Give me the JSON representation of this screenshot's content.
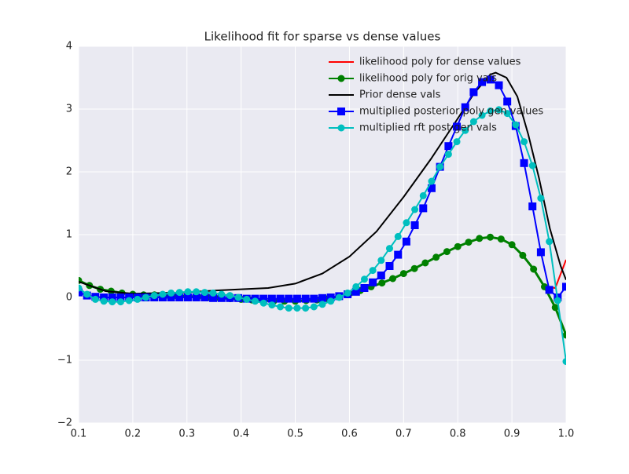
{
  "chart_data": {
    "type": "line",
    "title": "Likelihood fit for sparse vs dense values",
    "xlim": [
      0.1,
      1.0
    ],
    "ylim": [
      -2,
      4
    ],
    "xticks": [
      0.1,
      0.2,
      0.3,
      0.4,
      0.5,
      0.6,
      0.7,
      0.8,
      0.9,
      {
        "value": 1.0,
        "label": "1.0"
      }
    ],
    "yticks": [
      {
        "value": -2,
        "label": "−2"
      },
      {
        "value": -1,
        "label": "−1"
      },
      0,
      1,
      2,
      3,
      4
    ],
    "grid": true,
    "legend": "upper right",
    "x": [
      0.1,
      0.1155,
      0.131,
      0.1466,
      0.1621,
      0.1776,
      0.1931,
      0.2086,
      0.2241,
      0.2397,
      0.2552,
      0.2707,
      0.2862,
      0.3017,
      0.3172,
      0.3328,
      0.3483,
      0.3638,
      0.3793,
      0.3948,
      0.4103,
      0.4259,
      0.4414,
      0.4569,
      0.4724,
      0.4879,
      0.5034,
      0.519,
      0.5345,
      0.55,
      0.5655,
      0.581,
      0.5966,
      0.6121,
      0.6276,
      0.6431,
      0.6586,
      0.6741,
      0.6897,
      0.7052,
      0.7207,
      0.7362,
      0.7517,
      0.7672,
      0.7828,
      0.7983,
      0.8138,
      0.8293,
      0.8448,
      0.8603,
      0.8759,
      0.8914,
      0.9069,
      0.9224,
      0.9379,
      0.9534,
      0.969,
      0.9845,
      1.0
    ],
    "series": [
      {
        "name": "likelihood poly for dense values",
        "color": "#ff0000",
        "marker": null,
        "x": [
          0.1,
          0.12,
          0.14,
          0.16,
          0.18,
          0.2,
          0.22,
          0.24,
          0.26,
          0.28,
          0.3,
          0.32,
          0.34,
          0.36,
          0.38,
          0.4,
          0.42,
          0.44,
          0.46,
          0.48,
          0.5,
          0.52,
          0.54,
          0.56,
          0.58,
          0.6,
          0.62,
          0.64,
          0.66,
          0.68,
          0.7,
          0.72,
          0.74,
          0.76,
          0.78,
          0.8,
          0.82,
          0.84,
          0.86,
          0.88,
          0.9,
          0.92,
          0.94,
          0.96,
          0.98,
          1.0
        ],
        "values": [
          0.27,
          0.19,
          0.13,
          0.1,
          0.07,
          0.05,
          0.04,
          0.04,
          0.03,
          0.03,
          0.02,
          0.01,
          0.0,
          -0.01,
          -0.02,
          -0.03,
          -0.04,
          -0.05,
          -0.06,
          -0.06,
          -0.06,
          -0.05,
          -0.04,
          -0.02,
          0.02,
          0.06,
          0.11,
          0.17,
          0.23,
          0.3,
          0.38,
          0.46,
          0.55,
          0.64,
          0.73,
          0.81,
          0.88,
          0.94,
          0.96,
          0.93,
          0.84,
          0.67,
          0.45,
          0.17,
          0.15,
          0.6
        ]
      },
      {
        "name": "likelihood poly for orig vals",
        "color": "#008000",
        "marker": "o",
        "x": [
          0.1,
          0.12,
          0.14,
          0.16,
          0.18,
          0.2,
          0.22,
          0.24,
          0.26,
          0.28,
          0.3,
          0.32,
          0.34,
          0.36,
          0.38,
          0.4,
          0.42,
          0.44,
          0.46,
          0.48,
          0.5,
          0.52,
          0.54,
          0.56,
          0.58,
          0.6,
          0.62,
          0.64,
          0.66,
          0.68,
          0.7,
          0.72,
          0.74,
          0.76,
          0.78,
          0.8,
          0.82,
          0.84,
          0.86,
          0.88,
          0.9,
          0.92,
          0.94,
          0.96,
          0.98,
          1.0
        ],
        "values": [
          0.27,
          0.19,
          0.13,
          0.1,
          0.07,
          0.05,
          0.04,
          0.04,
          0.03,
          0.03,
          0.02,
          0.01,
          0.0,
          -0.01,
          -0.02,
          -0.03,
          -0.04,
          -0.05,
          -0.06,
          -0.06,
          -0.06,
          -0.05,
          -0.04,
          -0.02,
          0.02,
          0.06,
          0.11,
          0.17,
          0.23,
          0.3,
          0.38,
          0.46,
          0.55,
          0.64,
          0.73,
          0.81,
          0.88,
          0.94,
          0.96,
          0.93,
          0.84,
          0.67,
          0.45,
          0.17,
          -0.16,
          -0.6
        ]
      },
      {
        "name": "Prior dense vals",
        "color": "#000000",
        "marker": null,
        "x": [
          0.1,
          0.15,
          0.2,
          0.3,
          0.35,
          0.4,
          0.45,
          0.5,
          0.55,
          0.6,
          0.65,
          0.7,
          0.75,
          0.8,
          0.83,
          0.86,
          0.87,
          0.89,
          0.91,
          0.93,
          0.95,
          0.97,
          0.99,
          1.0
        ],
        "values": [
          0.25,
          0.1,
          0.06,
          0.08,
          0.11,
          0.13,
          0.15,
          0.22,
          0.38,
          0.65,
          1.05,
          1.6,
          2.2,
          2.85,
          3.25,
          3.55,
          3.58,
          3.5,
          3.2,
          2.6,
          1.9,
          1.1,
          0.5,
          0.28
        ]
      },
      {
        "name": "multiplied posterior poly gen values",
        "color": "#0000ff",
        "marker": "s",
        "values": [
          0.08,
          0.03,
          0.01,
          0.0,
          0.0,
          0.0,
          0.0,
          0.0,
          0.0,
          0.0,
          0.0,
          0.0,
          0.0,
          0.0,
          0.0,
          0.0,
          -0.01,
          -0.01,
          -0.01,
          -0.01,
          -0.02,
          -0.02,
          -0.02,
          -0.02,
          -0.02,
          -0.02,
          -0.02,
          -0.02,
          -0.02,
          -0.01,
          0.0,
          0.02,
          0.05,
          0.09,
          0.15,
          0.24,
          0.35,
          0.5,
          0.68,
          0.89,
          1.15,
          1.42,
          1.74,
          2.08,
          2.41,
          2.72,
          3.03,
          3.27,
          3.43,
          3.47,
          3.38,
          3.12,
          2.73,
          2.14,
          1.45,
          0.72,
          0.12,
          0.0,
          0.17
        ]
      },
      {
        "name": "multiplied rft post gen vals",
        "color": "#00bfbf",
        "marker": "o",
        "values": [
          0.15,
          0.05,
          -0.03,
          -0.06,
          -0.07,
          -0.07,
          -0.05,
          -0.03,
          0.0,
          0.03,
          0.05,
          0.07,
          0.08,
          0.09,
          0.09,
          0.08,
          0.07,
          0.05,
          0.03,
          0.0,
          -0.03,
          -0.06,
          -0.09,
          -0.12,
          -0.15,
          -0.17,
          -0.17,
          -0.17,
          -0.15,
          -0.11,
          -0.06,
          0.0,
          0.07,
          0.17,
          0.29,
          0.43,
          0.59,
          0.78,
          0.97,
          1.19,
          1.4,
          1.62,
          1.85,
          2.08,
          2.28,
          2.48,
          2.66,
          2.8,
          2.9,
          2.97,
          2.99,
          2.93,
          2.75,
          2.48,
          2.1,
          1.58,
          0.89,
          -0.05,
          -1.02
        ]
      }
    ]
  }
}
